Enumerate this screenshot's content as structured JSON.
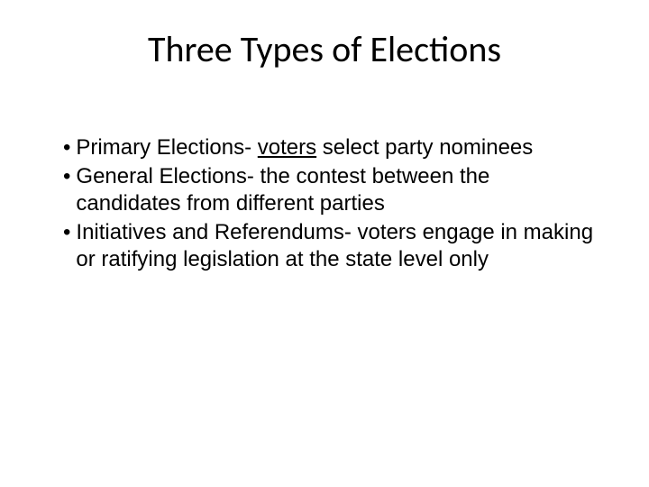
{
  "slide": {
    "title": "Three Types of Elections",
    "bullets": [
      {
        "prefix": "Primary Elections- ",
        "underlined": "voters",
        "suffix": " select party nominees"
      },
      {
        "prefix": "General Elections- the contest between the candidates from different parties",
        "underlined": "",
        "suffix": ""
      },
      {
        "prefix": "Initiatives and Referendums- voters engage in making or ratifying legislation at the state level only",
        "underlined": "",
        "suffix": ""
      }
    ],
    "bullet_char": "•",
    "title_fontsize": 40,
    "body_fontsize": 24,
    "background_color": "#ffffff",
    "text_color": "#000000"
  }
}
